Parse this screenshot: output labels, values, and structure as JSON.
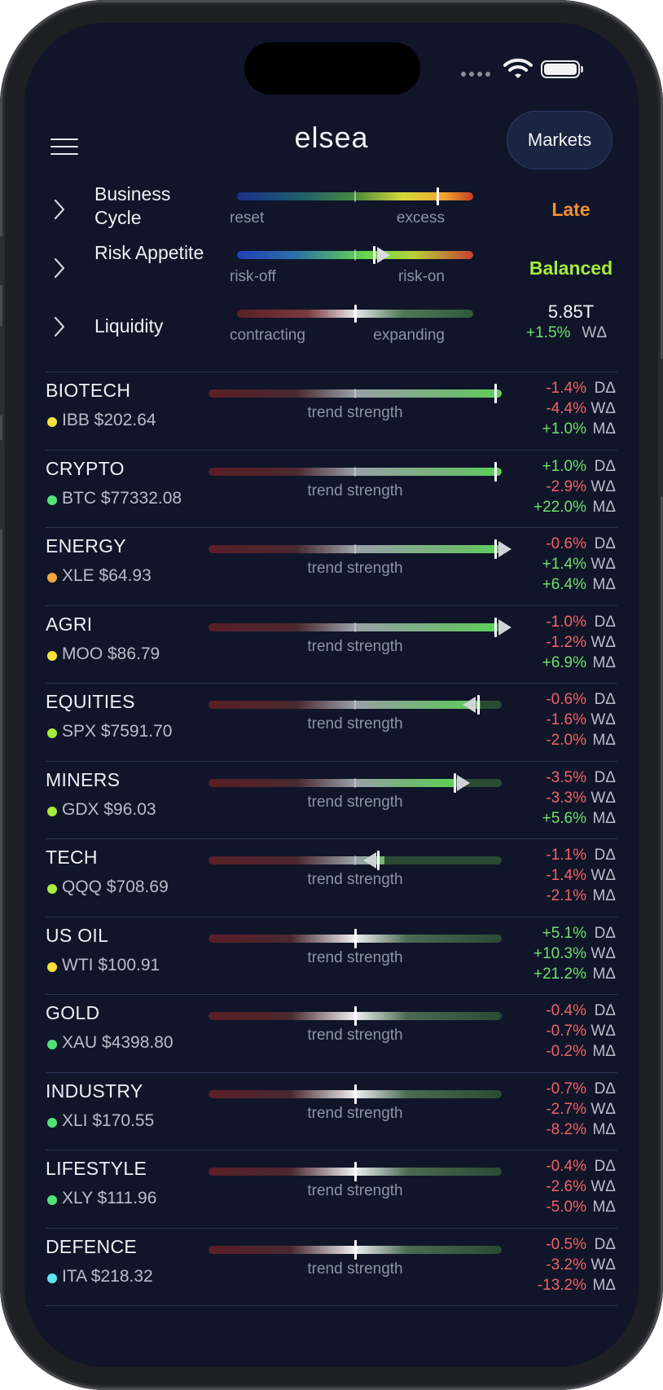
{
  "app": {
    "logo": "elsea",
    "markets_label": "Markets"
  },
  "indicators": [
    {
      "label": "Business Cycle",
      "left_label": "reset",
      "right_label": "excess",
      "value": "Late",
      "value_color": "#f0902e",
      "marker_fraction": 0.85
    },
    {
      "label": "Risk Appetite",
      "left_label": "risk-off",
      "right_label": "risk-on",
      "value": "Balanced",
      "value_color": "#a6ec3a",
      "marker_fraction": 0.58
    },
    {
      "label": "Liquidity",
      "left_label": "contracting",
      "right_label": "expanding",
      "value": "5.85T",
      "change": "+1.5%",
      "change_label": "WΔ",
      "marker_fraction": 0.5
    }
  ],
  "sectors": [
    {
      "name": "BIOTECH",
      "ticker": "IBB $202.64",
      "dot_color": "#f5e23a",
      "trend_label": "trend strength",
      "strength": 1.0,
      "arrow": "none",
      "deltas": [
        {
          "value": "-1.4%",
          "label": "DΔ"
        },
        {
          "value": "-4.4%",
          "label": "WΔ"
        },
        {
          "value": "+1.0%",
          "label": "MΔ"
        }
      ]
    },
    {
      "name": "CRYPTO",
      "ticker": "BTC $77332.08",
      "dot_color": "#52e27a",
      "trend_label": "trend strength",
      "strength": 1.0,
      "arrow": "none",
      "deltas": [
        {
          "value": "+1.0%",
          "label": "DΔ"
        },
        {
          "value": "-2.9%",
          "label": "WΔ"
        },
        {
          "value": "+22.0%",
          "label": "MΔ"
        }
      ]
    },
    {
      "name": "ENERGY",
      "ticker": "XLE $64.93",
      "dot_color": "#f0a73a",
      "trend_label": "trend strength",
      "strength": 1.0,
      "arrow": "right",
      "deltas": [
        {
          "value": "-0.6%",
          "label": "DΔ"
        },
        {
          "value": "+1.4%",
          "label": "WΔ"
        },
        {
          "value": "+6.4%",
          "label": "MΔ"
        }
      ]
    },
    {
      "name": "AGRI",
      "ticker": "MOO $86.79",
      "dot_color": "#f5e23a",
      "trend_label": "trend strength",
      "strength": 0.98,
      "arrow": "right",
      "deltas": [
        {
          "value": "-1.0%",
          "label": "DΔ"
        },
        {
          "value": "-1.2%",
          "label": "WΔ"
        },
        {
          "value": "+6.9%",
          "label": "MΔ"
        }
      ]
    },
    {
      "name": "EQUITIES",
      "ticker": "SPX $7591.70",
      "dot_color": "#a6ec3a",
      "trend_label": "trend strength",
      "strength": 0.92,
      "arrow": "left",
      "deltas": [
        {
          "value": "-0.6%",
          "label": "DΔ"
        },
        {
          "value": "-1.6%",
          "label": "WΔ"
        },
        {
          "value": "-2.0%",
          "label": "MΔ"
        }
      ]
    },
    {
      "name": "MINERS",
      "ticker": "GDX $96.03",
      "dot_color": "#a6ec3a",
      "trend_label": "trend strength",
      "strength": 0.84,
      "arrow": "right",
      "deltas": [
        {
          "value": "-3.5%",
          "label": "DΔ"
        },
        {
          "value": "-3.3%",
          "label": "WΔ"
        },
        {
          "value": "+5.6%",
          "label": "MΔ"
        }
      ]
    },
    {
      "name": "TECH",
      "ticker": "QQQ $708.69",
      "dot_color": "#a6ec3a",
      "trend_label": "trend strength",
      "strength": 0.58,
      "arrow": "left",
      "deltas": [
        {
          "value": "-1.1%",
          "label": "DΔ"
        },
        {
          "value": "-1.4%",
          "label": "WΔ"
        },
        {
          "value": "-2.1%",
          "label": "MΔ"
        }
      ]
    },
    {
      "name": "US OIL",
      "ticker": "WTI $100.91",
      "dot_color": "#f5e23a",
      "trend_label": "trend strength",
      "strength": 0.5,
      "arrow": "none",
      "deltas": [
        {
          "value": "+5.1%",
          "label": "DΔ"
        },
        {
          "value": "+10.3%",
          "label": "WΔ"
        },
        {
          "value": "+21.2%",
          "label": "MΔ"
        }
      ]
    },
    {
      "name": "GOLD",
      "ticker": "XAU $4398.80",
      "dot_color": "#52e27a",
      "trend_label": "trend strength",
      "strength": 0.5,
      "arrow": "none",
      "deltas": [
        {
          "value": "-0.4%",
          "label": "DΔ"
        },
        {
          "value": "-0.7%",
          "label": "WΔ"
        },
        {
          "value": "-0.2%",
          "label": "MΔ"
        }
      ]
    },
    {
      "name": "INDUSTRY",
      "ticker": "XLI $170.55",
      "dot_color": "#52e27a",
      "trend_label": "trend strength",
      "strength": 0.5,
      "arrow": "none",
      "deltas": [
        {
          "value": "-0.7%",
          "label": "DΔ"
        },
        {
          "value": "-2.7%",
          "label": "WΔ"
        },
        {
          "value": "-8.2%",
          "label": "MΔ"
        }
      ]
    },
    {
      "name": "LIFESTYLE",
      "ticker": "XLY $111.96",
      "dot_color": "#52e27a",
      "trend_label": "trend strength",
      "strength": 0.5,
      "arrow": "none",
      "deltas": [
        {
          "value": "-0.4%",
          "label": "DΔ"
        },
        {
          "value": "-2.6%",
          "label": "WΔ"
        },
        {
          "value": "-5.0%",
          "label": "MΔ"
        }
      ]
    },
    {
      "name": "DEFENCE",
      "ticker": "ITA $218.32",
      "dot_color": "#5fe6f2",
      "trend_label": "trend strength",
      "strength": 0.5,
      "arrow": "none",
      "deltas": [
        {
          "value": "-0.5%",
          "label": "DΔ"
        },
        {
          "value": "-3.2%",
          "label": "WΔ"
        },
        {
          "value": "-13.2%",
          "label": "MΔ"
        }
      ]
    }
  ]
}
